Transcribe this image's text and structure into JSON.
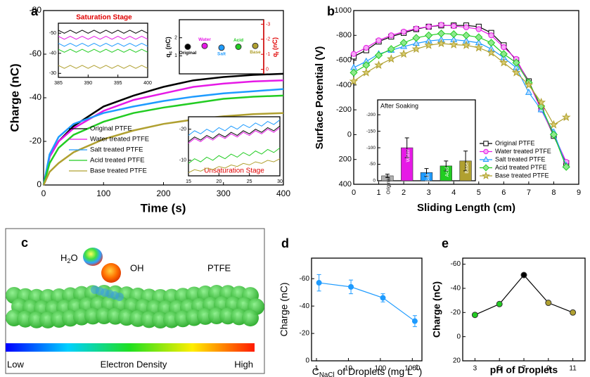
{
  "chart_data": [
    {
      "panel": "a",
      "type": "line",
      "xlabel": "Time (s)",
      "ylabel": "Charge (nC)",
      "x": [
        0,
        10,
        25,
        50,
        100,
        150,
        200,
        250,
        300,
        350,
        400
      ],
      "xlim": [
        0,
        400
      ],
      "xticks": [
        0,
        100,
        200,
        300,
        400
      ],
      "ylim": [
        0,
        -80
      ],
      "yticks": [
        0,
        -20,
        -40,
        -60,
        -80
      ],
      "legend": "lower-left",
      "series": [
        {
          "name": "Original PTFE",
          "color": "#000000",
          "values": [
            0,
            -13,
            -20,
            -27,
            -36,
            -41,
            -45,
            -48,
            -49.5,
            -50.5,
            -51
          ]
        },
        {
          "name": "Water treated PTFE",
          "color": "#e619e6",
          "values": [
            0,
            -13,
            -20,
            -26,
            -34,
            -39,
            -42,
            -45,
            -46.5,
            -47.5,
            -48
          ]
        },
        {
          "name": "Salt treated PTFE",
          "color": "#1e9bff",
          "values": [
            0,
            -14,
            -22,
            -28,
            -33,
            -36,
            -38.5,
            -40.5,
            -42,
            -43,
            -44
          ]
        },
        {
          "name": "Acid treated PTFE",
          "color": "#22cc22",
          "values": [
            0,
            -10,
            -17,
            -23,
            -29,
            -33,
            -35.5,
            -37.5,
            -39.5,
            -40.5,
            -41
          ]
        },
        {
          "name": "Base treated PTFE",
          "color": "#b0a030",
          "values": [
            0,
            -6,
            -10,
            -15,
            -21,
            -25,
            -28,
            -30,
            -31.5,
            -32.5,
            -33
          ]
        }
      ]
    },
    {
      "type": "line",
      "title": "Saturation Stage",
      "x": [
        385,
        386,
        387,
        388,
        389,
        390,
        391,
        392,
        393,
        394,
        395,
        396,
        397,
        398,
        399,
        400
      ],
      "xlim": [
        385,
        400
      ],
      "xticks": [
        385,
        390,
        395,
        400
      ],
      "ylim": [
        -28,
        -55
      ],
      "yticks": [
        -30,
        -40,
        -50
      ],
      "series": [
        {
          "color": "#000000",
          "values": [
            -51.5,
            -50,
            -51.5,
            -50,
            -51.5,
            -50,
            -51.5,
            -50,
            -51.5,
            -50,
            -51.5,
            -50,
            -51.5,
            -50,
            -51.5,
            -50
          ]
        },
        {
          "color": "#e619e6",
          "values": [
            -48.5,
            -47,
            -48.5,
            -47,
            -48.5,
            -47,
            -48.5,
            -47,
            -48.5,
            -47,
            -48.5,
            -47,
            -48.5,
            -47,
            -48.5,
            -47
          ]
        },
        {
          "color": "#1e9bff",
          "values": [
            -45,
            -43.5,
            -45,
            -43.5,
            -45,
            -43.5,
            -45,
            -43.5,
            -45,
            -43.5,
            -45,
            -43.5,
            -45,
            -43.5,
            -45,
            -43.5
          ]
        },
        {
          "color": "#22cc22",
          "values": [
            -42,
            -40.5,
            -42,
            -40.5,
            -42,
            -40.5,
            -42,
            -40.5,
            -42,
            -40.5,
            -42,
            -40.5,
            -42,
            -40.5,
            -42,
            -40.5
          ]
        },
        {
          "color": "#b0a030",
          "values": [
            -34,
            -32.5,
            -34,
            -32.5,
            -34,
            -32.5,
            -34,
            -32.5,
            -34,
            -32.5,
            -34,
            -32.5,
            -34,
            -32.5,
            -34,
            -32.5
          ]
        }
      ]
    },
    {
      "type": "scatter",
      "ylabel": [
        {
          "text": "q"
        },
        {
          "text": "c",
          "script": "sub"
        },
        {
          "text": " (nC)"
        }
      ],
      "y2label": [
        {
          "text": "q"
        },
        {
          "text": "f",
          "script": "sub"
        },
        {
          "text": " (nC)"
        }
      ],
      "y2color": "#e00000",
      "categories": [
        "Original",
        "Water",
        "Salt",
        "Acid",
        "Base"
      ],
      "ylim": [
        0,
        3
      ],
      "yticks": [
        1,
        2
      ],
      "y2lim": [
        0.3,
        -3.3
      ],
      "y2ticks": [
        0,
        -1,
        -2,
        -3
      ],
      "series": [
        {
          "colors": [
            "#000000",
            "#e619e6",
            "#1e9bff",
            "#22cc22",
            "#b0a030"
          ],
          "values": [
            1.5,
            1.55,
            1.45,
            1.5,
            1.55
          ]
        }
      ]
    },
    {
      "type": "line",
      "title": "Unsaturation Stage",
      "x": [
        15,
        16,
        17,
        18,
        19,
        20,
        21,
        22,
        23,
        24,
        25,
        26,
        27,
        28,
        29,
        30
      ],
      "xlim": [
        15,
        30
      ],
      "xticks": [
        15,
        20,
        25,
        30
      ],
      "ylim": [
        -5,
        -24
      ],
      "yticks": [
        -10,
        -20
      ],
      "series": [
        {
          "color": "#000000",
          "values": [
            -16,
            -17.5,
            -16.5,
            -18,
            -17,
            -18.5,
            -17.5,
            -19,
            -18,
            -19.5,
            -18.5,
            -20,
            -19,
            -20.5,
            -19.5,
            -21
          ]
        },
        {
          "color": "#e619e6",
          "values": [
            -15.5,
            -17,
            -16,
            -17.5,
            -16.5,
            -18,
            -17,
            -18.5,
            -17.5,
            -19,
            -18,
            -19.5,
            -18.5,
            -20,
            -19,
            -20.5
          ]
        },
        {
          "color": "#1e9bff",
          "values": [
            -18,
            -19.5,
            -18.5,
            -20,
            -19,
            -20.5,
            -19.5,
            -21,
            -20,
            -21.5,
            -20.5,
            -22,
            -21,
            -22.5,
            -21.5,
            -23
          ]
        },
        {
          "color": "#22cc22",
          "values": [
            -9,
            -10.5,
            -9.5,
            -11,
            -10,
            -11.5,
            -10.5,
            -12,
            -11,
            -12.5,
            -11.5,
            -13,
            -12,
            -13.5,
            -12.5,
            -14
          ]
        },
        {
          "color": "#b0a030",
          "values": [
            -6,
            -7,
            -6.5,
            -7.5,
            -7,
            -8,
            -7.5,
            -8.5,
            -8,
            -9,
            -8.5,
            -9.5,
            -9,
            -10,
            -9.5,
            -10.5
          ]
        }
      ]
    },
    {
      "panel": "b",
      "type": "line",
      "xlabel": "Sliding Length (cm)",
      "ylabel": "Surface Potential (V)",
      "x": [
        0,
        0.5,
        1,
        1.5,
        2,
        2.5,
        3,
        3.5,
        4,
        4.5,
        5,
        5.5,
        6,
        6.5,
        7,
        7.5,
        8,
        8.5
      ],
      "xlim": [
        0,
        9
      ],
      "xticks": [
        0,
        1,
        2,
        3,
        4,
        5,
        6,
        7,
        8,
        9
      ],
      "ylim": [
        400,
        -1000
      ],
      "yticks": [
        -1000,
        -800,
        -600,
        -400,
        -200,
        0,
        200,
        400
      ],
      "legend": "lower-right",
      "series": [
        {
          "name": "Original PTFE",
          "color": "#000000",
          "fill": "#ffffff",
          "marker": "square",
          "values": [
            -630,
            -680,
            -750,
            -790,
            -820,
            -850,
            -870,
            -880,
            -880,
            -880,
            -870,
            -820,
            -720,
            -600,
            -430,
            -210,
            10,
            230
          ]
        },
        {
          "name": "Water treated PTFE",
          "color": "#e619e6",
          "fill": "#f7a8f7",
          "marker": "circle",
          "values": [
            -650,
            -700,
            -760,
            -800,
            -830,
            -855,
            -870,
            -885,
            -875,
            -865,
            -850,
            -800,
            -705,
            -610,
            -420,
            -200,
            0,
            220
          ]
        },
        {
          "name": "Salt treated PTFE",
          "color": "#1e9bff",
          "fill": "#b8dcff",
          "marker": "triangle",
          "values": [
            -540,
            -590,
            -650,
            -680,
            -710,
            -735,
            -755,
            -765,
            -765,
            -755,
            -740,
            -690,
            -620,
            -540,
            -340,
            -200,
            -20,
            250
          ]
        },
        {
          "name": "Acid treated PTFE",
          "color": "#22cc22",
          "fill": "#8ee88e",
          "marker": "diamond",
          "values": [
            -500,
            -560,
            -640,
            -690,
            -740,
            -780,
            -800,
            -815,
            -810,
            -800,
            -785,
            -740,
            -650,
            -580,
            -420,
            -230,
            0,
            260
          ]
        },
        {
          "name": "Base treated PTFE",
          "color": "#b0a030",
          "fill": "#d8cc70",
          "marker": "star",
          "values": [
            -430,
            -500,
            -560,
            -610,
            -650,
            -690,
            -720,
            -735,
            -725,
            -720,
            -700,
            -660,
            -580,
            -500,
            -400,
            -260,
            -80,
            -140
          ]
        }
      ]
    },
    {
      "type": "bar",
      "title": "After Soaking",
      "categories": [
        "Original",
        "Water",
        "Salt",
        "Acid",
        "Base"
      ],
      "ylim": [
        0,
        -245
      ],
      "yticks": [
        0,
        -50,
        -100,
        -150,
        -200
      ],
      "series": [
        {
          "colors": [
            "#b0b0b0",
            "#e619e6",
            "#1e9bff",
            "#22cc22",
            "#b0a030"
          ],
          "values": [
            -15,
            -100,
            -25,
            -45,
            -60
          ],
          "errors": [
            5,
            30,
            12,
            15,
            30
          ]
        }
      ]
    },
    {
      "panel": "d",
      "type": "line",
      "xlog": true,
      "ylabel": "Charge (nC)",
      "xlabel": [
        {
          "text": "C"
        },
        {
          "text": "NaCl",
          "script": "sub"
        },
        {
          "text": " of Droplets (mg L"
        },
        {
          "text": "-1",
          "script": "sup"
        },
        {
          "text": ")"
        }
      ],
      "x": [
        1.2,
        12,
        120,
        1200
      ],
      "xlim": [
        0.7,
        2000
      ],
      "xticks": [
        1,
        10,
        100,
        1000
      ],
      "ylim": [
        0,
        -75
      ],
      "yticks": [
        0,
        -20,
        -40,
        -60
      ],
      "series": [
        {
          "color": "#1e9bff",
          "fill": "#1e9bff",
          "marker": "circle",
          "values": [
            -57,
            -54,
            -46,
            -29
          ],
          "errors": [
            6,
            5,
            3,
            4
          ]
        }
      ]
    },
    {
      "panel": "e",
      "type": "line",
      "xlabel": "pH of Droplets",
      "ylabel": "Charge (nC)",
      "x": [
        3,
        5,
        7,
        9,
        11
      ],
      "xlim": [
        2,
        12
      ],
      "xticks": [
        3,
        5,
        7,
        9,
        11
      ],
      "ylim": [
        20,
        -65
      ],
      "yticks": [
        20,
        0,
        -20,
        -40,
        -60
      ],
      "series": [
        {
          "color": "#000000",
          "colors": [
            "#22cc22",
            "#22cc22",
            "#000000",
            "#b0a030",
            "#b0a030"
          ],
          "marker": "circle",
          "values": [
            -18,
            -27,
            -51,
            -28,
            -20
          ]
        }
      ]
    }
  ],
  "illustration": {
    "panel": "c",
    "water": [
      {
        "text": "H"
      },
      {
        "text": "2",
        "script": "sub"
      },
      {
        "text": "O"
      }
    ],
    "hydroxyl": "OH",
    "polymer": "PTFE",
    "scale_low": "Low",
    "scale_title": "Electron Density",
    "scale_high": "High"
  }
}
